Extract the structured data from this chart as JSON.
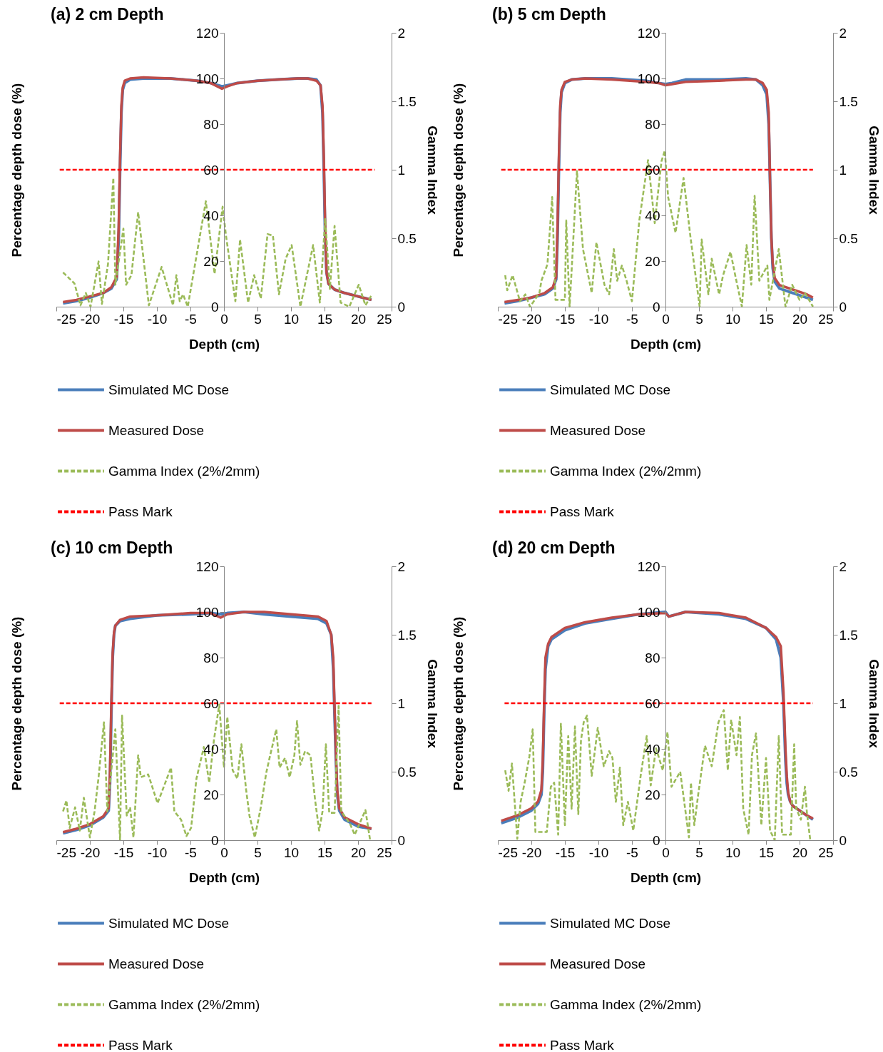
{
  "chart_data": [
    {
      "type": "line",
      "title": "(a) 2 cm Depth",
      "xlabel": "Depth (cm)",
      "ylabel": "Percentage depth dose (%)",
      "y2label": "Gamma Index",
      "xlim": [
        -25,
        25
      ],
      "xticks": [
        -25,
        -20,
        -15,
        -10,
        -5,
        0,
        5,
        10,
        15,
        20,
        25
      ],
      "ylim": [
        0,
        120
      ],
      "yticks": [
        0,
        20,
        40,
        60,
        80,
        100,
        120
      ],
      "y2lim": [
        0,
        2
      ],
      "y2ticks": [
        0,
        0.5,
        1,
        1.5,
        2
      ],
      "legend": "bottom",
      "grid": false,
      "series": [
        {
          "name": "Simulated MC Dose",
          "color": "#4a7ebb",
          "x": [
            -24,
            -22,
            -20,
            -18,
            -16.8,
            -16,
            -15.7,
            -15.5,
            -15.3,
            -15.1,
            -14.8,
            -14,
            -12,
            -8,
            -4,
            -2,
            -0.3,
            0.5,
            2,
            5,
            8,
            11,
            12.5,
            13.8,
            14.4,
            14.7,
            14.9,
            15.1,
            15.3,
            15.6,
            16.5,
            18,
            20,
            22
          ],
          "values": [
            1.5,
            2.5,
            4,
            6,
            8,
            12,
            30,
            60,
            85,
            95,
            98,
            99.5,
            100,
            100,
            99,
            98,
            96.5,
            97,
            98,
            99,
            99.5,
            100,
            100,
            99.5,
            97,
            85,
            60,
            30,
            15,
            10,
            7.5,
            6,
            4.5,
            3
          ]
        },
        {
          "name": "Measured Dose",
          "color": "#be4b48",
          "x": [
            -24,
            -22,
            -20,
            -18,
            -16.8,
            -16,
            -15.7,
            -15.5,
            -15.3,
            -15.1,
            -14.8,
            -14,
            -12,
            -8,
            -4,
            -2,
            -0.3,
            0.5,
            2,
            5,
            8,
            11,
            12.5,
            13.8,
            14.4,
            14.7,
            14.9,
            15.1,
            15.3,
            15.6,
            16.5,
            18,
            20,
            22
          ],
          "values": [
            2,
            3,
            4.5,
            6,
            8.5,
            13,
            35,
            65,
            88,
            96,
            99,
            100,
            100.5,
            100,
            99,
            98,
            95.5,
            96.5,
            98,
            99,
            99.5,
            100,
            100,
            99,
            97,
            88,
            65,
            35,
            15,
            10,
            7.5,
            6,
            4.5,
            3
          ]
        },
        {
          "name": "Gamma Index (2%/2mm)",
          "color": "#9bbb59",
          "axis": "y2",
          "line_style": "dashed",
          "x": [
            -24,
            -22.3,
            -21.4,
            -20.6,
            -19.9,
            -18.7,
            -18.2,
            -17.3,
            -16.5,
            -16.2,
            -15,
            -14.6,
            -13.8,
            -12.8,
            -11.2,
            -9.3,
            -7.6,
            -7.1,
            -6.6,
            -6.1,
            -5.4,
            -2.7,
            -1.4,
            -0.2,
            0.3,
            1.7,
            2.4,
            3.6,
            4.5,
            5.5,
            6.5,
            7.3,
            8.2,
            9.2,
            10.1,
            11.4,
            13.3,
            14.3,
            15.1,
            15.8,
            16.5,
            17.4,
            18.7,
            20.1,
            21.1,
            22.1
          ],
          "values": [
            0.25,
            0.17,
            0.01,
            0.1,
            0,
            0.33,
            0.02,
            0.31,
            0.94,
            0.16,
            0.57,
            0.16,
            0.23,
            0.69,
            0.01,
            0.29,
            0.01,
            0.23,
            0.04,
            0.09,
            0,
            0.77,
            0.24,
            0.73,
            0.52,
            0.04,
            0.49,
            0.03,
            0.23,
            0.06,
            0.53,
            0.52,
            0.09,
            0.35,
            0.45,
            0,
            0.45,
            0.03,
            0.64,
            0.13,
            0.59,
            0.03,
            0,
            0.16,
            0.01,
            0.09
          ]
        },
        {
          "name": "Pass Mark",
          "color": "#ff0000",
          "axis": "y2",
          "line_style": "dashed",
          "x": [
            -24.5,
            22.5
          ],
          "values": [
            1,
            1
          ]
        }
      ]
    },
    {
      "type": "line",
      "title": "(b) 5 cm Depth",
      "xlabel": "Depth (cm)",
      "ylabel": "Percentage depth dose (%)",
      "y2label": "Gamma Index",
      "xlim": [
        -25,
        25
      ],
      "xticks": [
        -25,
        -20,
        -15,
        -10,
        -5,
        0,
        5,
        10,
        15,
        20,
        25
      ],
      "ylim": [
        0,
        120
      ],
      "yticks": [
        0,
        20,
        40,
        60,
        80,
        100,
        120
      ],
      "y2lim": [
        0,
        2
      ],
      "y2ticks": [
        0,
        0.5,
        1,
        1.5,
        2
      ],
      "legend": "bottom",
      "grid": false,
      "series": [
        {
          "name": "Simulated MC Dose",
          "color": "#4a7ebb",
          "x": [
            -24,
            -22,
            -20,
            -18,
            -16.8,
            -16.3,
            -16.1,
            -15.9,
            -15.7,
            -15.5,
            -15,
            -14,
            -12,
            -8,
            -3,
            -1,
            0,
            1,
            3,
            8,
            12,
            13.5,
            14.5,
            15.1,
            15.4,
            15.6,
            15.8,
            16,
            16.3,
            17,
            19,
            21,
            22
          ],
          "values": [
            1.5,
            2.5,
            4,
            5.5,
            8,
            12,
            30,
            60,
            85,
            94,
            98,
            99.5,
            100,
            100,
            99,
            98,
            97.5,
            98,
            99.5,
            99.5,
            100,
            99.5,
            97,
            93,
            80,
            55,
            30,
            17,
            11,
            8,
            6,
            4,
            3
          ]
        },
        {
          "name": "Measured Dose",
          "color": "#be4b48",
          "x": [
            -24,
            -22,
            -20,
            -18,
            -16.8,
            -16.3,
            -16.1,
            -15.9,
            -15.7,
            -15.5,
            -15,
            -14,
            -12,
            -8,
            -3,
            -1,
            0,
            1,
            3,
            8,
            12,
            13.5,
            14.5,
            15.1,
            15.4,
            15.6,
            15.8,
            16,
            16.3,
            17,
            19,
            21,
            22
          ],
          "values": [
            2,
            3,
            4,
            6,
            8.5,
            13,
            35,
            65,
            88,
            95,
            98.5,
            99.5,
            100,
            99.5,
            98.5,
            98,
            97,
            97.5,
            98.5,
            99,
            99.5,
            99.5,
            98,
            95,
            85,
            55,
            30,
            19,
            12.5,
            9.5,
            7.5,
            5.5,
            4
          ]
        },
        {
          "name": "Gamma Index (2%/2mm)",
          "color": "#9bbb59",
          "axis": "y2",
          "line_style": "dashed",
          "x": [
            -23.9,
            -23.6,
            -22.8,
            -21.7,
            -20.9,
            -20.2,
            -18.8,
            -18.5,
            -17.6,
            -16.9,
            -16.4,
            -15,
            -14.8,
            -14.3,
            -14,
            -13.2,
            -12.3,
            -11,
            -10.3,
            -9.1,
            -8.4,
            -7.7,
            -7.2,
            -6.5,
            -5.8,
            -5,
            -3.9,
            -2.6,
            -1.6,
            -0.6,
            -0.1,
            0.4,
            1.5,
            2.7,
            3.7,
            5.1,
            5.4,
            6.4,
            6.9,
            8,
            8.6,
            9.7,
            10.4,
            11.4,
            12.1,
            12.8,
            13.3,
            14,
            15.2,
            15.5,
            16.9,
            17.9,
            18.9,
            20,
            20.8,
            22
          ],
          "values": [
            0.23,
            0.12,
            0.23,
            0.04,
            0.09,
            0,
            0.1,
            0.19,
            0.31,
            0.8,
            0.05,
            0.05,
            0.63,
            0,
            0.26,
            0.99,
            0.42,
            0.1,
            0.47,
            0.16,
            0.09,
            0.42,
            0.19,
            0.3,
            0.19,
            0.04,
            0.63,
            1.07,
            0.61,
            1.06,
            1.14,
            0.8,
            0.54,
            0.94,
            0.52,
            0,
            0.49,
            0.09,
            0.35,
            0.09,
            0.23,
            0.4,
            0.23,
            0,
            0.45,
            0.16,
            0.81,
            0.19,
            0.3,
            0.05,
            0.42,
            0,
            0.16,
            0.05,
            0.1,
            0
          ]
        },
        {
          "name": "Pass Mark",
          "color": "#ff0000",
          "axis": "y2",
          "line_style": "dashed",
          "x": [
            -24.5,
            22
          ],
          "values": [
            1,
            1
          ]
        }
      ]
    },
    {
      "type": "line",
      "title": "(c) 10 cm Depth",
      "xlabel": "Depth (cm)",
      "ylabel": "Percentage depth dose (%)",
      "y2label": "Gamma Index",
      "xlim": [
        -25,
        25
      ],
      "xticks": [
        -25,
        -20,
        -15,
        -10,
        -5,
        0,
        5,
        10,
        15,
        20,
        25
      ],
      "ylim": [
        0,
        120
      ],
      "yticks": [
        0,
        20,
        40,
        60,
        80,
        100,
        120
      ],
      "y2lim": [
        0,
        2
      ],
      "y2ticks": [
        0,
        0.5,
        1,
        1.5,
        2
      ],
      "legend": "bottom",
      "grid": false,
      "series": [
        {
          "name": "Simulated MC Dose",
          "color": "#4a7ebb",
          "x": [
            -24,
            -22,
            -20,
            -18,
            -17.2,
            -17,
            -16.8,
            -16.6,
            -16.4,
            -16.2,
            -15.5,
            -14,
            -10,
            -5,
            -2,
            -0.5,
            0.5,
            3,
            6,
            10,
            14,
            15.3,
            16,
            16.3,
            16.5,
            16.7,
            16.9,
            17.2,
            18,
            20,
            22
          ],
          "values": [
            3,
            4.5,
            6.5,
            10,
            13,
            25,
            55,
            80,
            90,
            94,
            96,
            97,
            98.5,
            99,
            99.5,
            99,
            99.5,
            100,
            99,
            98,
            97,
            95,
            90,
            75,
            55,
            35,
            20,
            13,
            9,
            6,
            5
          ]
        },
        {
          "name": "Measured Dose",
          "color": "#be4b48",
          "x": [
            -24,
            -22,
            -20,
            -18,
            -17.2,
            -17,
            -16.8,
            -16.6,
            -16.4,
            -16.2,
            -15.5,
            -14,
            -10,
            -5,
            -2,
            -0.5,
            0.5,
            3,
            6,
            10,
            14,
            15.3,
            16,
            16.3,
            16.5,
            16.7,
            16.9,
            17.2,
            18,
            20,
            22
          ],
          "values": [
            3.5,
            5,
            7,
            10.5,
            14,
            30,
            60,
            82,
            91,
            94,
            96.5,
            98,
            98.5,
            99.5,
            99.5,
            97.5,
            99,
            100,
            100,
            99,
            98,
            96,
            90,
            80,
            58,
            38,
            22,
            14,
            10,
            7,
            5
          ]
        },
        {
          "name": "Gamma Index (2%/2mm)",
          "color": "#9bbb59",
          "axis": "y2",
          "line_style": "dashed",
          "x": [
            -24,
            -23.5,
            -23,
            -22.2,
            -21.5,
            -20.9,
            -20,
            -19.3,
            -18.7,
            -17.9,
            -17.4,
            -16.2,
            -15.5,
            -15.2,
            -14.5,
            -14,
            -13.5,
            -12.8,
            -12.4,
            -11.3,
            -9.9,
            -8.9,
            -7.9,
            -7.4,
            -6.4,
            -5.6,
            -4.9,
            -4.1,
            -3,
            -2.2,
            -1.5,
            -0.7,
            0,
            0.5,
            1.3,
            2,
            2.6,
            3.3,
            3.8,
            4.6,
            5.5,
            6.3,
            6.8,
            7.8,
            8.3,
            9.1,
            9.8,
            10.5,
            10.9,
            11.4,
            12.1,
            12.9,
            13.6,
            14.2,
            14.7,
            15.2,
            15.7,
            16.5,
            17.1,
            17.5,
            18.8,
            19.5,
            20.3,
            21.1,
            21.8
          ],
          "values": [
            0.21,
            0.29,
            0.09,
            0.24,
            0.07,
            0.31,
            0.02,
            0.21,
            0.46,
            0.86,
            0.21,
            0.81,
            0,
            0.91,
            0.18,
            0.24,
            0.02,
            0.62,
            0.46,
            0.48,
            0.27,
            0.4,
            0.53,
            0.21,
            0.15,
            0.03,
            0.09,
            0.45,
            0.68,
            0.42,
            0.73,
            0.99,
            0.53,
            0.9,
            0.51,
            0.45,
            0.7,
            0.37,
            0.18,
            0.02,
            0.24,
            0.49,
            0.6,
            0.81,
            0.53,
            0.6,
            0.46,
            0.62,
            0.87,
            0.55,
            0.65,
            0.62,
            0.29,
            0.07,
            0.21,
            0.7,
            0.2,
            0.2,
            0.98,
            0.21,
            0.12,
            0.04,
            0.13,
            0.22,
            0
          ]
        },
        {
          "name": "Pass Mark",
          "color": "#ff0000",
          "axis": "y2",
          "line_style": "dashed",
          "x": [
            -24.5,
            22
          ],
          "values": [
            1,
            1
          ]
        }
      ]
    },
    {
      "type": "line",
      "title": "(d) 20 cm Depth",
      "xlabel": "Depth (cm)",
      "ylabel": "Percentage depth dose (%)",
      "y2label": "Gamma Index",
      "xlim": [
        -25,
        25
      ],
      "xticks": [
        -25,
        -20,
        -15,
        -10,
        -5,
        0,
        5,
        10,
        15,
        20,
        25
      ],
      "ylim": [
        0,
        120
      ],
      "yticks": [
        0,
        20,
        40,
        60,
        80,
        100,
        120
      ],
      "y2lim": [
        0,
        2
      ],
      "y2ticks": [
        0,
        0.5,
        1,
        1.5,
        2
      ],
      "legend": "bottom",
      "grid": false,
      "series": [
        {
          "name": "Simulated MC Dose",
          "color": "#4a7ebb",
          "x": [
            -24.5,
            -22,
            -20,
            -19,
            -18.5,
            -18.3,
            -18.1,
            -17.9,
            -17.5,
            -17,
            -15,
            -12,
            -8,
            -4,
            0,
            0.5,
            3,
            8,
            12,
            15,
            16.5,
            17.2,
            17.6,
            17.9,
            18.1,
            18.3,
            18.6,
            19,
            20,
            21,
            22
          ],
          "values": [
            7.5,
            10,
            13,
            16,
            20,
            30,
            55,
            75,
            85,
            88,
            92,
            95,
            97,
            99,
            100,
            98,
            100,
            99,
            97,
            93,
            88,
            80,
            60,
            35,
            25,
            20,
            17,
            15,
            13,
            11,
            9
          ]
        },
        {
          "name": "Measured Dose",
          "color": "#be4b48",
          "x": [
            -24.5,
            -22,
            -20,
            -19,
            -18.5,
            -18.3,
            -18.1,
            -17.9,
            -17.5,
            -17,
            -15,
            -12,
            -8,
            -4,
            0,
            0.5,
            3,
            8,
            12,
            15,
            16.5,
            17.2,
            17.6,
            17.9,
            18.1,
            18.3,
            18.6,
            19,
            20,
            21,
            22
          ],
          "values": [
            8.5,
            11,
            14,
            17,
            22,
            35,
            60,
            80,
            86,
            89,
            93,
            95.5,
            97.5,
            99,
            99.5,
            98,
            100,
            99.5,
            97.5,
            93,
            89,
            85,
            65,
            40,
            28,
            21,
            17,
            15,
            13,
            11,
            9.5
          ]
        },
        {
          "name": "Gamma Index (2%/2mm)",
          "color": "#9bbb59",
          "axis": "y2",
          "line_style": "dashed",
          "x": [
            -23.9,
            -23.4,
            -22.9,
            -22.1,
            -21.6,
            -21,
            -20.3,
            -19.8,
            -19.4,
            -17.7,
            -17.1,
            -16.6,
            -16,
            -15.6,
            -15,
            -14.5,
            -14,
            -13.5,
            -13,
            -12.6,
            -12.2,
            -11.7,
            -11,
            -10.1,
            -9.2,
            -8.4,
            -7.9,
            -7.4,
            -6.8,
            -6.3,
            -5.6,
            -4.8,
            -3.7,
            -2.8,
            -2.2,
            -1.4,
            -0.4,
            0.3,
            0.9,
            2.2,
            2.8,
            3.5,
            3.8,
            4.3,
            4.9,
            5.9,
            6.9,
            7.9,
            8.7,
            9.3,
            9.8,
            10.6,
            11.1,
            11.6,
            12.4,
            12.9,
            13.5,
            14.3,
            15,
            15.6,
            16.3,
            16.9,
            17.4,
            18.7,
            19.2,
            19.5,
            20.2,
            20.8,
            21.1,
            21.6
          ],
          "values": [
            0.51,
            0.36,
            0.56,
            0.01,
            0.28,
            0.42,
            0.61,
            0.81,
            0.06,
            0.06,
            0.39,
            0.42,
            0.04,
            0.85,
            0.11,
            0.76,
            0.23,
            0.83,
            0.19,
            0.73,
            0.86,
            0.91,
            0.47,
            0.82,
            0.54,
            0.65,
            0.6,
            0.28,
            0.53,
            0.11,
            0.28,
            0.07,
            0.47,
            0.76,
            0.4,
            0.67,
            0.51,
            0.79,
            0.39,
            0.5,
            0.28,
            0.02,
            0.42,
            0.11,
            0.34,
            0.69,
            0.54,
            0.86,
            0.95,
            0.51,
            0.88,
            0.62,
            0.9,
            0.23,
            0.04,
            0.62,
            0.78,
            0.11,
            0.6,
            0.07,
            0,
            0.76,
            0.04,
            0.04,
            0.7,
            0.23,
            0.15,
            0.39,
            0.2,
            0
          ]
        },
        {
          "name": "Pass Mark",
          "color": "#ff0000",
          "axis": "y2",
          "line_style": "dashed",
          "x": [
            -24,
            22
          ],
          "values": [
            1,
            1
          ]
        }
      ]
    }
  ]
}
